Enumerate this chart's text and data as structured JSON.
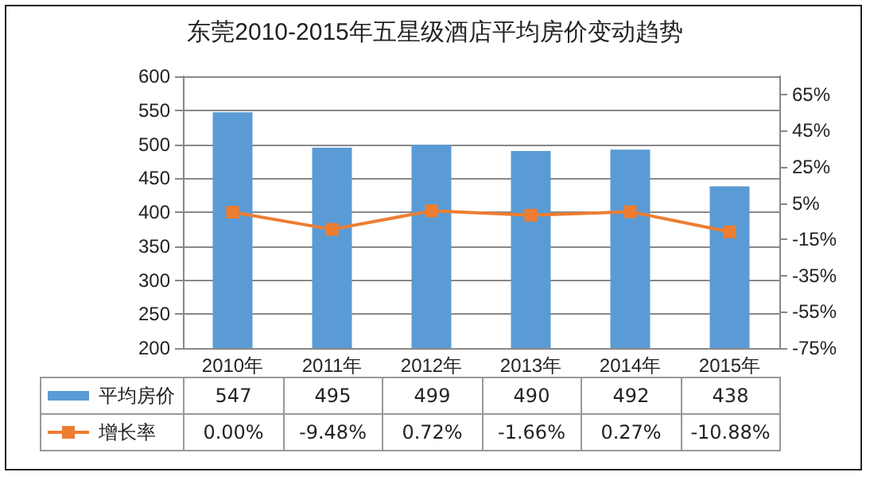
{
  "chart_data": {
    "type": "bar",
    "title": "东莞2010-2015年五星级酒店平均房价变动趋势",
    "categories": [
      "2010年",
      "2011年",
      "2012年",
      "2013年",
      "2014年",
      "2015年"
    ],
    "series": [
      {
        "name": "平均房价",
        "color": "#5b9bd5",
        "values": [
          547,
          495,
          499,
          490,
          492,
          438
        ]
      },
      {
        "name": "增长率",
        "type": "line",
        "axis": "y2",
        "color": "#ed7d31",
        "marker": "square",
        "values": [
          0.0,
          -9.48,
          0.72,
          -1.66,
          0.27,
          -10.88
        ],
        "value_labels": [
          "0.00%",
          "-9.48%",
          "0.72%",
          "-1.66%",
          "0.27%",
          "-10.88%"
        ]
      }
    ],
    "ylim": [
      200,
      600
    ],
    "yticks": [
      200,
      250,
      300,
      350,
      400,
      450,
      500,
      550,
      600
    ],
    "y2lim": [
      -75,
      75
    ],
    "y2ticks": [
      {
        "value": -75,
        "label": "-75%"
      },
      {
        "value": -55,
        "label": "-55%"
      },
      {
        "value": -35,
        "label": "-35%"
      },
      {
        "value": -15,
        "label": "-15%"
      },
      {
        "value": 5,
        "label": "5%"
      },
      {
        "value": 25,
        "label": "25%"
      },
      {
        "value": 45,
        "label": "45%"
      },
      {
        "value": 65,
        "label": "65%"
      }
    ],
    "grid": "y",
    "legend": "bottom",
    "data_labels": true
  }
}
